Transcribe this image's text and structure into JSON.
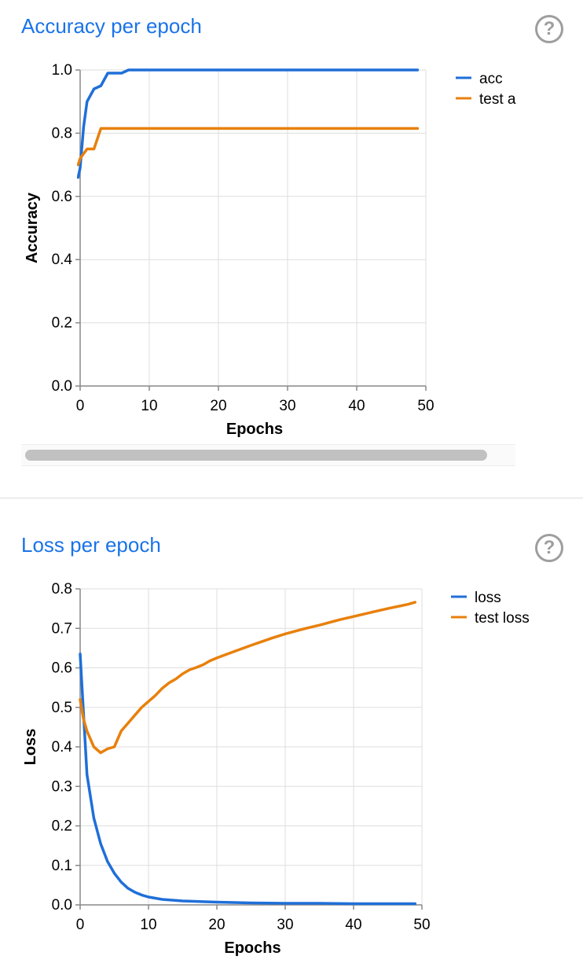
{
  "accuracy_card": {
    "title": "Accuracy per epoch",
    "help_label": "?"
  },
  "loss_card": {
    "title": "Loss per epoch",
    "help_label": "?"
  },
  "colors": {
    "title": "#1a73e8",
    "series_blue": "#1f6fd8",
    "series_orange": "#e8800c",
    "grid": "#dedede",
    "axis": "#888888"
  },
  "chart_data": [
    {
      "type": "line",
      "title": "Accuracy per epoch",
      "xlabel": "Epochs",
      "ylabel": "Accuracy",
      "xlim": [
        0,
        50
      ],
      "ylim": [
        0,
        1
      ],
      "xticks": [
        0,
        10,
        20,
        30,
        40,
        50
      ],
      "xtick_labels": [
        "0",
        "10",
        "20",
        "30",
        "40",
        "50"
      ],
      "yticks": [
        0,
        0.2,
        0.4,
        0.6,
        0.8,
        1.0
      ],
      "ytick_labels": [
        "0.0",
        "0.2",
        "0.4",
        "0.6",
        "0.8",
        "1.0"
      ],
      "grid": true,
      "legend_position": "top-right",
      "series": [
        {
          "name": "acc",
          "legend_label": "acc",
          "color": "#1f6fd8",
          "x": [
            -0.3,
            0,
            0.5,
            1,
            2,
            3,
            4,
            5,
            6,
            7,
            8,
            10,
            15,
            20,
            25,
            30,
            35,
            40,
            45,
            48.8
          ],
          "y": [
            0.66,
            0.69,
            0.82,
            0.9,
            0.94,
            0.95,
            0.99,
            0.99,
            0.99,
            1.0,
            1.0,
            1.0,
            1.0,
            1.0,
            1.0,
            1.0,
            1.0,
            1.0,
            1.0,
            1.0
          ]
        },
        {
          "name": "test acc",
          "legend_label": "test a",
          "color": "#e8800c",
          "x": [
            -0.3,
            0,
            1,
            2,
            3,
            4,
            5,
            10,
            15,
            20,
            25,
            30,
            35,
            40,
            45,
            48.8
          ],
          "y": [
            0.7,
            0.72,
            0.75,
            0.75,
            0.815,
            0.815,
            0.815,
            0.815,
            0.815,
            0.815,
            0.815,
            0.815,
            0.815,
            0.815,
            0.815,
            0.815
          ]
        }
      ]
    },
    {
      "type": "line",
      "title": "Loss per epoch",
      "xlabel": "Epochs",
      "ylabel": "Loss",
      "xlim": [
        0,
        50
      ],
      "ylim": [
        0,
        0.8
      ],
      "xticks": [
        0,
        10,
        20,
        30,
        40,
        50
      ],
      "xtick_labels": [
        "0",
        "10",
        "20",
        "30",
        "40",
        "50"
      ],
      "yticks": [
        0,
        0.1,
        0.2,
        0.3,
        0.4,
        0.5,
        0.6,
        0.7,
        0.8
      ],
      "ytick_labels": [
        "0.0",
        "0.1",
        "0.2",
        "0.3",
        "0.4",
        "0.5",
        "0.6",
        "0.7",
        "0.8"
      ],
      "grid": true,
      "legend_position": "top-right",
      "series": [
        {
          "name": "loss",
          "legend_label": "loss",
          "color": "#1f6fd8",
          "x": [
            0,
            1,
            2,
            3,
            4,
            5,
            6,
            7,
            8,
            9,
            10,
            12,
            15,
            20,
            25,
            30,
            35,
            40,
            45,
            49
          ],
          "y": [
            0.635,
            0.33,
            0.22,
            0.155,
            0.11,
            0.08,
            0.058,
            0.042,
            0.032,
            0.025,
            0.02,
            0.014,
            0.01,
            0.007,
            0.005,
            0.004,
            0.004,
            0.003,
            0.003,
            0.003
          ]
        },
        {
          "name": "test loss",
          "legend_label": "test loss",
          "color": "#e8800c",
          "x": [
            0,
            0.5,
            1,
            2,
            3,
            4,
            5,
            6,
            7,
            8,
            9,
            10,
            11,
            12,
            13,
            14,
            15,
            16,
            17,
            18,
            19,
            20,
            22,
            25,
            28,
            30,
            33,
            35,
            38,
            40,
            43,
            45,
            48,
            49
          ],
          "y": [
            0.52,
            0.47,
            0.44,
            0.4,
            0.385,
            0.395,
            0.4,
            0.44,
            0.46,
            0.48,
            0.5,
            0.515,
            0.53,
            0.548,
            0.562,
            0.572,
            0.585,
            0.595,
            0.601,
            0.608,
            0.618,
            0.625,
            0.638,
            0.657,
            0.675,
            0.686,
            0.7,
            0.708,
            0.722,
            0.73,
            0.742,
            0.75,
            0.761,
            0.766
          ]
        }
      ]
    }
  ]
}
